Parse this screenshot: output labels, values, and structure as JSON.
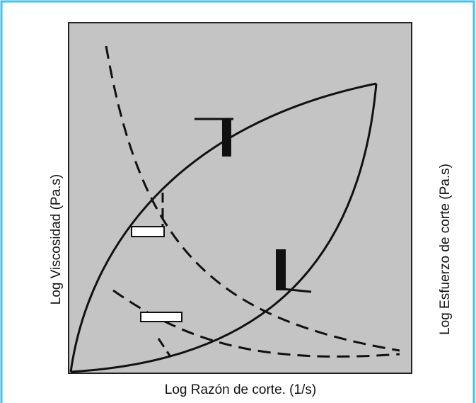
{
  "axes": {
    "y_left_label": "Log Viscosidad (Pa.s)",
    "x_label": "Log Razón de corte. (1/s)",
    "y_right_label": "Log Esfuerzo de corte (Pa.s)"
  }
}
